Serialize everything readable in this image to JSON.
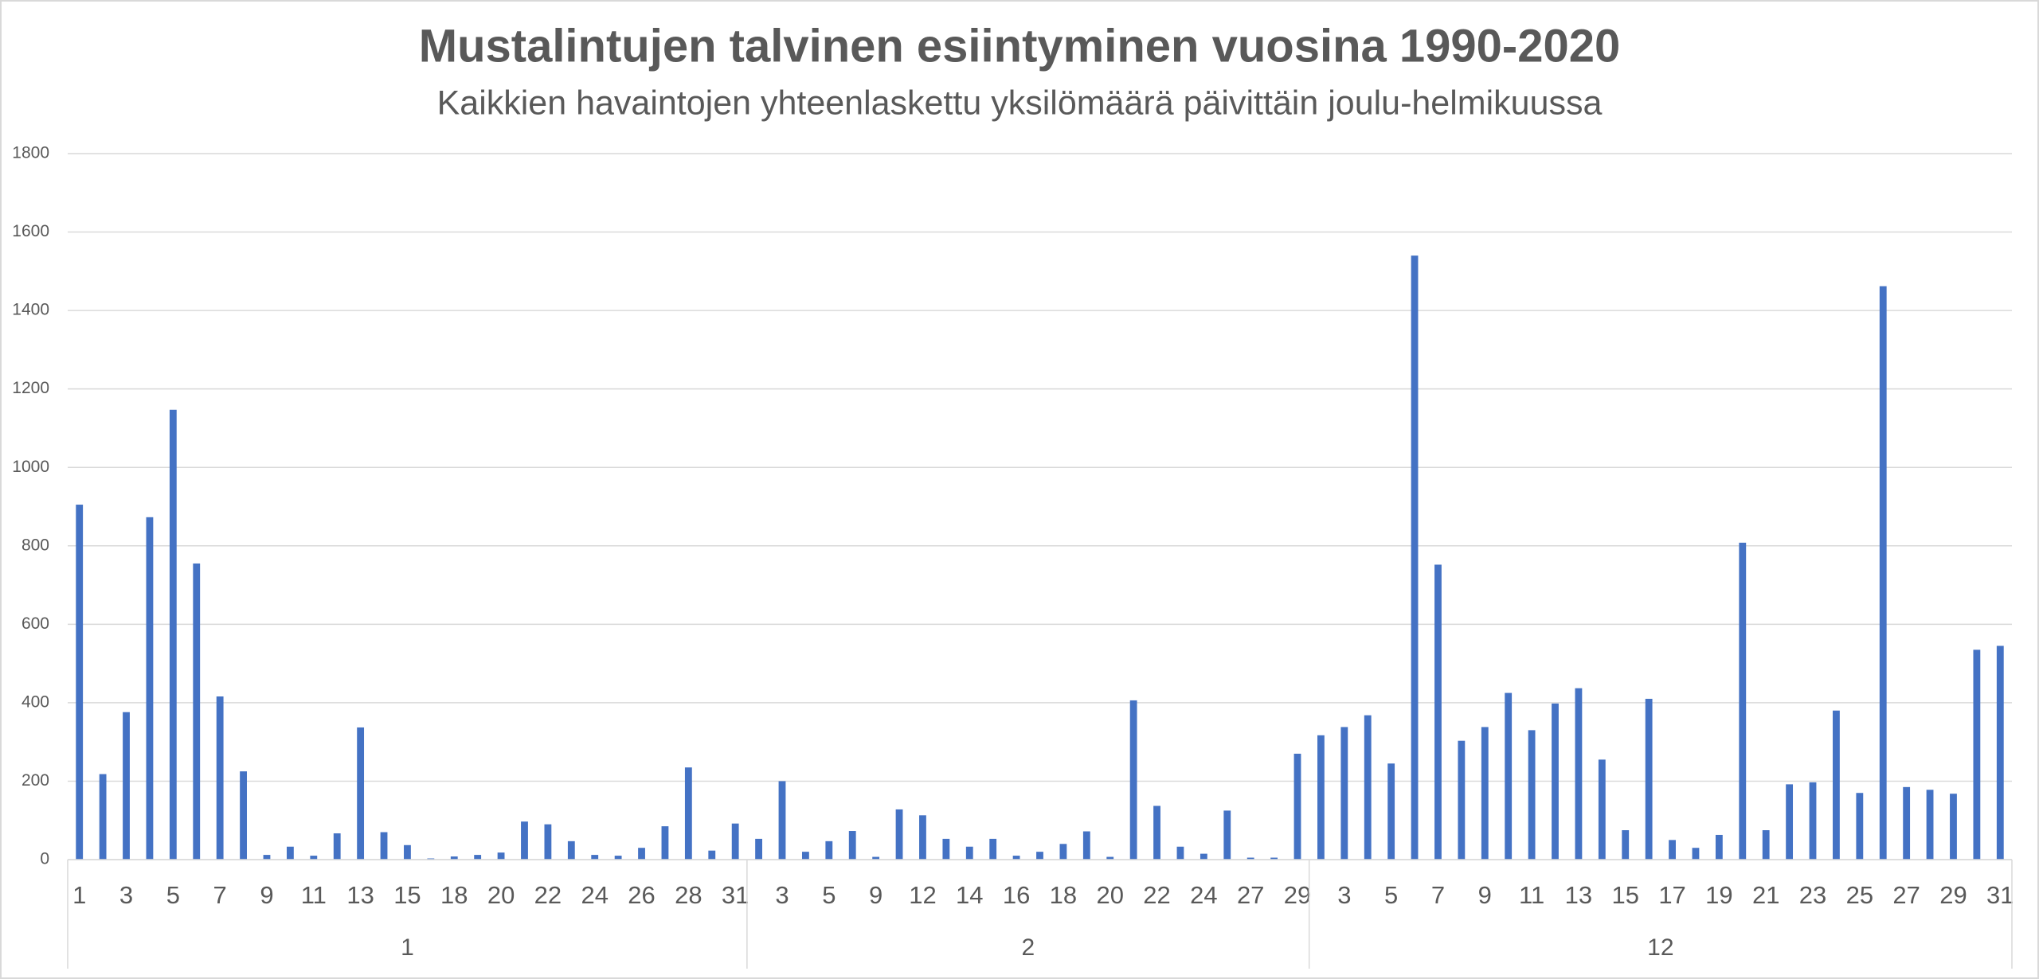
{
  "chart_data": {
    "type": "bar",
    "title": "Mustalintujen talvinen esiintyminen vuosina 1990-2020",
    "subtitle": "Kaikkien havaintojen yhteenlaskettu yksilömäärä päivittäin joulu-helmikuussa",
    "color": "#4472c4",
    "ylim": [
      0,
      1800
    ],
    "yticks": [
      0,
      200,
      400,
      600,
      800,
      1000,
      1200,
      1400,
      1600,
      1800
    ],
    "grid": true,
    "groups": [
      {
        "name": "1",
        "categories": [
          "1",
          null,
          "3",
          null,
          "5",
          null,
          "7",
          null,
          "9",
          null,
          "11",
          null,
          "13",
          null,
          "15",
          null,
          "18",
          null,
          "20",
          null,
          "22",
          null,
          "24",
          null,
          "26",
          null,
          "28",
          null,
          "31"
        ],
        "values": [
          905,
          218,
          376,
          873,
          1147,
          755,
          416,
          225,
          12,
          33,
          10,
          67,
          337,
          70,
          37,
          3,
          8,
          12,
          18,
          97,
          90,
          47,
          12,
          10,
          30,
          85,
          235,
          23,
          92
        ]
      },
      {
        "name": "2",
        "categories": [
          null,
          "3",
          null,
          "5",
          null,
          "9",
          null,
          "12",
          null,
          "14",
          null,
          "16",
          null,
          "18",
          null,
          "20",
          null,
          "22",
          null,
          "24",
          null,
          "27",
          null,
          "29"
        ],
        "values": [
          53,
          200,
          20,
          47,
          73,
          7,
          128,
          113,
          53,
          33,
          53,
          10,
          20,
          40,
          72,
          7,
          406,
          137,
          33,
          15,
          125,
          5,
          5,
          270
        ]
      },
      {
        "name": "12",
        "categories": [
          null,
          "3",
          null,
          "5",
          null,
          "7",
          null,
          "9",
          null,
          "11",
          null,
          "13",
          null,
          "15",
          null,
          "17",
          null,
          "19",
          null,
          "21",
          null,
          "23",
          null,
          "25",
          null,
          "27",
          null,
          "29",
          null,
          "31"
        ],
        "values": [
          317,
          338,
          368,
          245,
          1540,
          752,
          303,
          338,
          425,
          330,
          398,
          437,
          255,
          75,
          410,
          50,
          30,
          63,
          808,
          75,
          192,
          197,
          380,
          170,
          1462,
          185,
          178,
          168,
          535,
          545
        ]
      }
    ]
  }
}
